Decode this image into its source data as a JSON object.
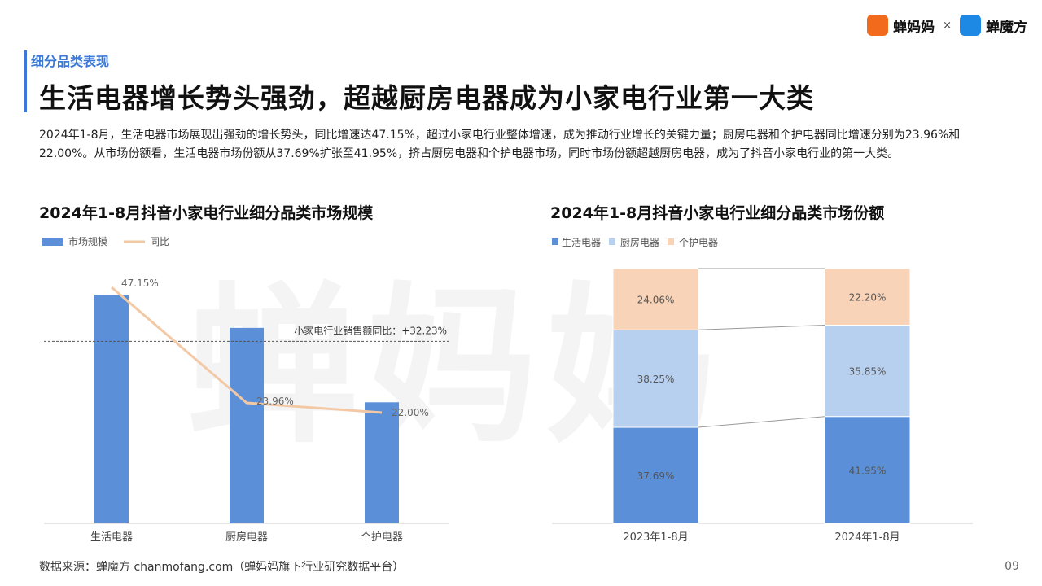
{
  "brand": {
    "logo1_text": "蝉妈妈",
    "separator": "×",
    "logo2_text": "蝉魔方"
  },
  "watermark": "蝉妈妈",
  "header": {
    "section_tag": "细分品类表现",
    "title": "生活电器增长势头强劲，超越厨房电器成为小家电行业第一大类",
    "intro": "2024年1-8月，生活电器市场展现出强劲的增长势头，同比增速达47.15%，超过小家电行业整体增速，成为推动行业增长的关键力量；厨房电器和个护电器同比增速分别为23.96%和22.00%。从市场份额看，生活电器市场份额从37.69%扩张至41.95%，挤占厨房电器和个护电器市场，同时市场份额超越厨房电器，成为了抖音小家电行业的第一大类。"
  },
  "footer": {
    "source": "数据来源：蝉魔方 chanmofang.com（蝉妈妈旗下行业研究数据平台）",
    "page": "09"
  },
  "colors": {
    "accent": "#3b78d8",
    "bar": "#5b8fd8",
    "line": "#f3c9a5",
    "life": "#5b8fd8",
    "kitchen": "#b7d0f0",
    "care": "#f8d3b8"
  },
  "chart_data": [
    {
      "type": "bar",
      "title": "2024年1-8月抖音小家电行业细分品类市场规模",
      "categories": [
        "生活电器",
        "厨房电器",
        "个护电器"
      ],
      "legend": [
        "市场规模",
        "同比"
      ],
      "series": [
        {
          "name": "市场规模",
          "type": "bar",
          "values": [
            41.95,
            35.85,
            22.2
          ]
        },
        {
          "name": "同比",
          "type": "line",
          "values": [
            47.15,
            23.96,
            22.0
          ],
          "labels": [
            "47.15%",
            "23.96%",
            "22.00%"
          ]
        }
      ],
      "reference_line": {
        "label": "小家电行业销售额同比：+32.23%",
        "value": 32.23
      },
      "line_range": [
        0,
        50
      ],
      "grid": false,
      "legend_position": "top-left"
    },
    {
      "type": "bar",
      "stacked": true,
      "title": "2024年1-8月抖音小家电行业细分品类市场份额",
      "categories": [
        "2023年1-8月",
        "2024年1-8月"
      ],
      "series": [
        {
          "name": "生活电器",
          "values": [
            37.69,
            41.95
          ],
          "labels": [
            "37.69%",
            "41.95%"
          ]
        },
        {
          "name": "厨房电器",
          "values": [
            38.25,
            35.85
          ],
          "labels": [
            "38.25%",
            "35.85%"
          ]
        },
        {
          "name": "个护电器",
          "values": [
            24.06,
            22.2
          ],
          "labels": [
            "24.06%",
            "22.20%"
          ]
        }
      ],
      "ylim": [
        0,
        100
      ],
      "grid": false,
      "legend_position": "top-left"
    }
  ]
}
